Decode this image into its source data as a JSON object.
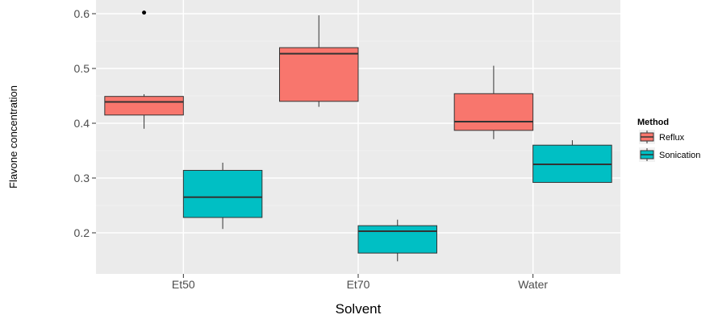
{
  "chart_data": {
    "type": "boxplot",
    "title": "",
    "xlabel": "Solvent",
    "ylabel": "Flavone concentration",
    "categories": [
      "Et50",
      "Et70",
      "Water"
    ],
    "ylim": [
      0.125,
      0.625
    ],
    "yticks": [
      0.2,
      0.3,
      0.4,
      0.5,
      0.6
    ],
    "ytick_labels": [
      "0.2",
      "0.3",
      "0.4",
      "0.5",
      "0.6"
    ],
    "grid": true,
    "legend": {
      "title": "Method",
      "position": "right"
    },
    "series": [
      {
        "name": "Reflux",
        "color": "#F8766D",
        "boxes": [
          {
            "category": "Et50",
            "min": 0.39,
            "q1": 0.415,
            "median": 0.439,
            "q3": 0.449,
            "max": 0.453,
            "outliers": [
              0.602
            ]
          },
          {
            "category": "Et70",
            "min": 0.43,
            "q1": 0.44,
            "median": 0.527,
            "q3": 0.538,
            "max": 0.597,
            "outliers": []
          },
          {
            "category": "Water",
            "min": 0.371,
            "q1": 0.387,
            "median": 0.403,
            "q3": 0.454,
            "max": 0.505,
            "outliers": []
          }
        ]
      },
      {
        "name": "Sonication",
        "color": "#00BFC4",
        "boxes": [
          {
            "category": "Et50",
            "min": 0.207,
            "q1": 0.228,
            "median": 0.265,
            "q3": 0.314,
            "max": 0.328,
            "outliers": []
          },
          {
            "category": "Et70",
            "min": 0.148,
            "q1": 0.163,
            "median": 0.203,
            "q3": 0.213,
            "max": 0.224,
            "outliers": []
          },
          {
            "category": "Water",
            "min": 0.292,
            "q1": 0.292,
            "median": 0.325,
            "q3": 0.36,
            "max": 0.369,
            "outliers": []
          }
        ]
      }
    ]
  }
}
